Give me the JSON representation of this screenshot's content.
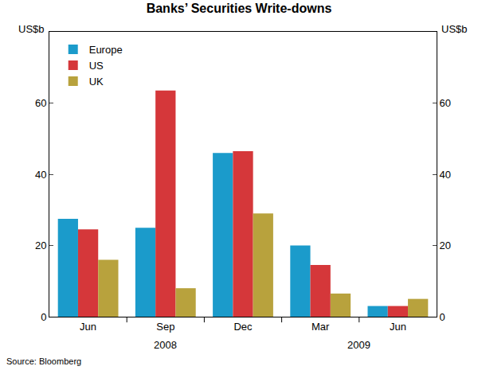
{
  "chart_data": {
    "type": "bar",
    "title": "Banks’ Securities Write-downs",
    "ylabel": "US$b",
    "y2label": "US$b",
    "source": "Source: Bloomberg",
    "categories": [
      "Jun",
      "Sep",
      "Dec",
      "Mar",
      "Jun"
    ],
    "x_groups": [
      {
        "label": "2008",
        "start": 0,
        "end": 2
      },
      {
        "label": "2009",
        "start": 3,
        "end": 4
      }
    ],
    "series": [
      {
        "name": "Europe",
        "color": "#1b9bcb",
        "values": [
          27.5,
          25,
          46,
          20,
          3
        ]
      },
      {
        "name": "US",
        "color": "#d5373a",
        "values": [
          24.5,
          63.5,
          46.5,
          14.5,
          3
        ]
      },
      {
        "name": "UK",
        "color": "#b8a23d",
        "values": [
          16,
          8,
          29,
          6.5,
          5
        ]
      }
    ],
    "ylim": [
      0,
      80
    ],
    "yticks": [
      0,
      20,
      40,
      60
    ],
    "y2lim": [
      0,
      80
    ],
    "y2ticks": [
      0,
      20,
      40,
      60
    ],
    "grid": false,
    "legend": "upper left"
  }
}
